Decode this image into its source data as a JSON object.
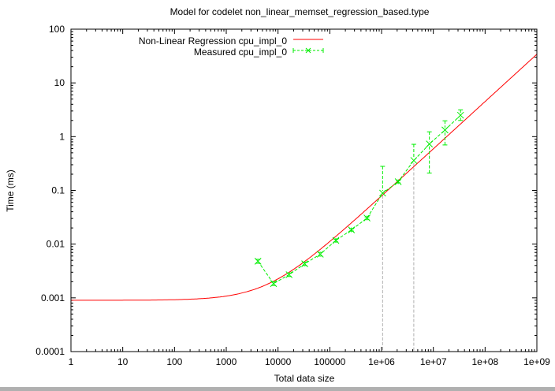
{
  "chart_data": {
    "type": "line",
    "title": "Model for codelet non_linear_memset_regression_based.type",
    "xlabel": "Total data size",
    "ylabel": "Time (ms)",
    "xscale": "log",
    "yscale": "log",
    "xlim": [
      1,
      1000000000
    ],
    "ylim": [
      0.0001,
      100
    ],
    "x_tick_labels": [
      "1",
      "10",
      "100",
      "1000",
      "10000",
      "100000",
      "1e+06",
      "1e+07",
      "1e+08",
      "1e+09"
    ],
    "x_ticks": [
      1,
      10,
      100,
      1000,
      10000,
      100000,
      1000000,
      10000000,
      100000000,
      1000000000
    ],
    "y_tick_labels": [
      "0.0001",
      "0.001",
      "0.01",
      "0.1",
      "1",
      "10",
      "100"
    ],
    "y_ticks": [
      0.0001,
      0.001,
      0.01,
      0.1,
      1,
      10,
      100
    ],
    "grid": false,
    "legend_position": "top-left",
    "series": [
      {
        "name": "Non-Linear Regression cpu_impl_0",
        "kind": "function",
        "model": "a*x^b + c",
        "params": {
          "a": 4.1e-07,
          "b": 0.88,
          "c": 0.0009
        },
        "color": "#ff0000"
      },
      {
        "name": "Measured cpu_impl_0",
        "kind": "points-with-errorbars",
        "color": "#00ee00",
        "x": [
          4096,
          8192,
          16384,
          32768,
          65536,
          131072,
          262144,
          524288,
          1048576,
          2097152,
          4194304,
          8388608,
          16777216,
          33554432
        ],
        "y": [
          0.0048,
          0.00184,
          0.0027,
          0.0043,
          0.0065,
          0.0117,
          0.0184,
          0.0306,
          0.089,
          0.145,
          0.36,
          0.73,
          1.33,
          2.5
        ],
        "y_low": [
          0.0044,
          0.0017,
          0.0025,
          0.004,
          0.006,
          0.011,
          0.0175,
          0.029,
          1e-05,
          0.138,
          1e-05,
          0.21,
          0.7,
          2.0
        ],
        "y_high": [
          0.0052,
          0.002,
          0.0029,
          0.0046,
          0.007,
          0.0124,
          0.0193,
          0.032,
          0.28,
          0.152,
          0.72,
          1.23,
          1.97,
          3.15
        ]
      }
    ]
  }
}
